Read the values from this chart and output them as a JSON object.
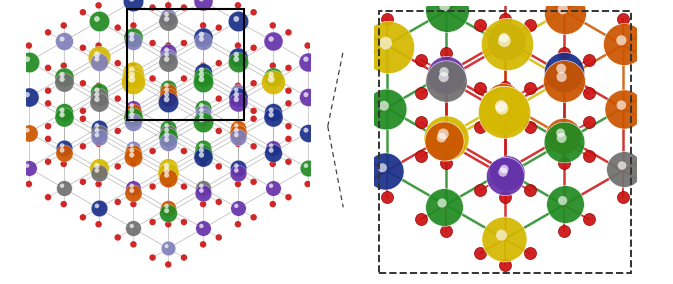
{
  "figsize": [
    6.73,
    2.84
  ],
  "dpi": 100,
  "bg_color": "#ffffff",
  "metal_colors": {
    "gold": "#D4B800",
    "blue": "#1A2F8A",
    "gray": "#707070",
    "green": "#228B22",
    "orange": "#CC5500",
    "purple": "#6633AA",
    "lavender": "#8080BB"
  },
  "oxygen_color": "#CC1111",
  "bond_color_left": "#999999",
  "bond_colors_right": [
    "#CC1111",
    "#CC5500",
    "#D4B800",
    "#1A2F8A",
    "#228B22",
    "#707070"
  ],
  "connector_color": "#444444"
}
